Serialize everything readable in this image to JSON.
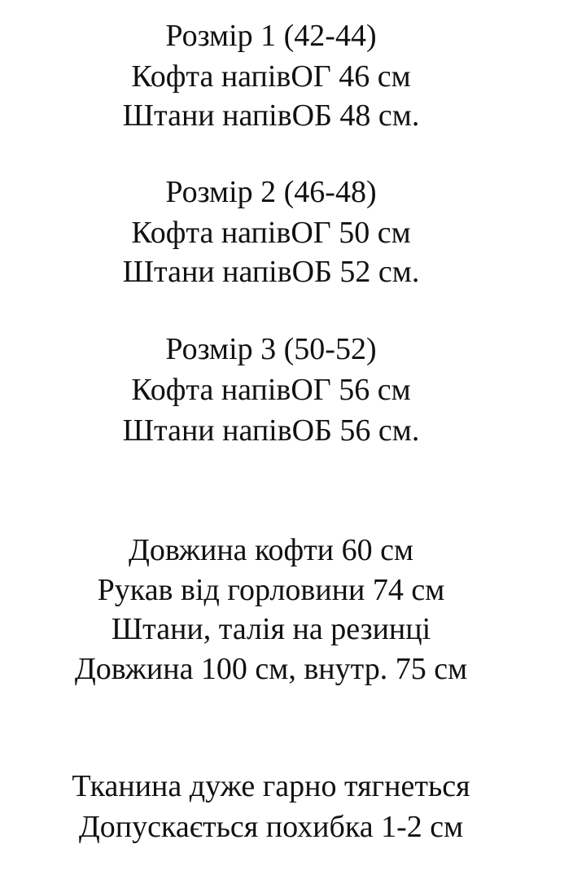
{
  "sizes": [
    {
      "title": "Розмір 1 (42-44)",
      "top": "Кофта напівОГ 46 см",
      "pants": "Штани напівОБ 48 см."
    },
    {
      "title": "Розмір 2 (46-48)",
      "top": "Кофта напівОГ 50 см",
      "pants": "Штани напівОБ 52 см."
    },
    {
      "title": "Розмір 3 (50-52)",
      "top": "Кофта напівОГ 56 см",
      "pants": "Штани напівОБ 56 см."
    }
  ],
  "details": [
    "Довжина кофти 60 см",
    "Рукав від горловини 74 см",
    "Штани, талія на резинці",
    "Довжина 100 см, внутр. 75 см"
  ],
  "notes": [
    "Тканина дуже гарно тягнеться",
    "Допускається похибка 1-2 см"
  ]
}
